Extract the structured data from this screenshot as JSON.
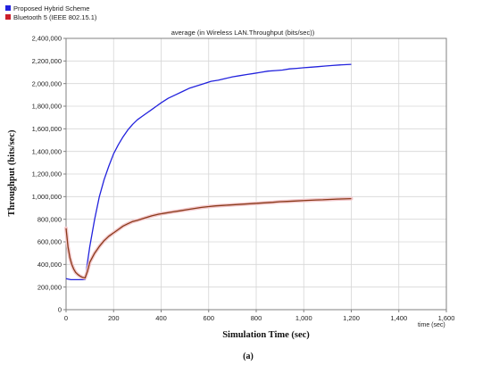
{
  "colors": {
    "hybrid": "#2222dd",
    "bluetooth": "#8a3a1a",
    "bluetooth_legend": "#cc1f2a",
    "bluetooth_halo": "#f3c8cc",
    "grid": "#d6d6d6",
    "axis": "#808080"
  },
  "chart_data": {
    "type": "line",
    "title": "average (in Wireless LAN.Throughput (bits/sec))",
    "xlabel": "Simulation Time (sec)",
    "x_unit_label": "time (sec)",
    "ylabel": "Throughput (bits/sec)",
    "caption": "(a)",
    "xlim": [
      0,
      1600
    ],
    "ylim": [
      0,
      2400000
    ],
    "x_ticks": [
      0,
      200,
      400,
      600,
      800,
      1000,
      1200,
      1400,
      1600
    ],
    "x_tick_labels": [
      "0",
      "200",
      "400",
      "600",
      "800",
      "1,000",
      "1,200",
      "1,400",
      "1,600"
    ],
    "y_ticks": [
      0,
      200000,
      400000,
      600000,
      800000,
      1000000,
      1200000,
      1400000,
      1600000,
      1800000,
      2000000,
      2200000,
      2400000
    ],
    "y_tick_labels": [
      "0",
      "200,000",
      "400,000",
      "600,000",
      "800,000",
      "1,000,000",
      "1,200,000",
      "1,400,000",
      "1,600,000",
      "1,800,000",
      "2,000,000",
      "2,200,000",
      "2,400,000"
    ],
    "grid": true,
    "legend_position": "top-left",
    "series": [
      {
        "name": "Proposed Hybrid Scheme",
        "x": [
          0,
          20,
          40,
          60,
          80,
          90,
          100,
          120,
          140,
          160,
          180,
          200,
          220,
          240,
          260,
          280,
          300,
          320,
          340,
          360,
          380,
          400,
          430,
          460,
          490,
          520,
          550,
          580,
          610,
          640,
          670,
          700,
          730,
          760,
          790,
          820,
          850,
          880,
          910,
          940,
          970,
          1000,
          1030,
          1060,
          1090,
          1120,
          1150,
          1180,
          1200
        ],
        "y": [
          275000,
          265000,
          265000,
          265000,
          265000,
          420000,
          560000,
          800000,
          1000000,
          1150000,
          1270000,
          1380000,
          1460000,
          1530000,
          1590000,
          1640000,
          1680000,
          1710000,
          1740000,
          1770000,
          1800000,
          1830000,
          1870000,
          1900000,
          1930000,
          1960000,
          1980000,
          2000000,
          2020000,
          2030000,
          2045000,
          2060000,
          2070000,
          2080000,
          2090000,
          2100000,
          2110000,
          2115000,
          2120000,
          2130000,
          2135000,
          2140000,
          2145000,
          2150000,
          2155000,
          2160000,
          2165000,
          2168000,
          2170000
        ]
      },
      {
        "name": "Bluetooth 5 (IEEE 802.15.1)",
        "x": [
          0,
          8,
          16,
          24,
          32,
          40,
          50,
          60,
          70,
          80,
          90,
          100,
          120,
          140,
          160,
          180,
          200,
          220,
          240,
          260,
          280,
          300,
          330,
          360,
          390,
          420,
          450,
          480,
          510,
          540,
          570,
          600,
          630,
          660,
          690,
          720,
          750,
          780,
          810,
          840,
          870,
          900,
          930,
          960,
          990,
          1020,
          1050,
          1080,
          1110,
          1140,
          1170,
          1200
        ],
        "y": [
          720000,
          560000,
          460000,
          400000,
          360000,
          330000,
          310000,
          295000,
          285000,
          280000,
          340000,
          420000,
          500000,
          560000,
          610000,
          650000,
          680000,
          710000,
          740000,
          760000,
          780000,
          790000,
          810000,
          830000,
          845000,
          855000,
          865000,
          875000,
          885000,
          895000,
          905000,
          912000,
          918000,
          922000,
          926000,
          930000,
          934000,
          938000,
          942000,
          946000,
          950000,
          955000,
          958000,
          961000,
          964000,
          967000,
          970000,
          972000,
          975000,
          978000,
          980000,
          982000
        ]
      }
    ]
  }
}
